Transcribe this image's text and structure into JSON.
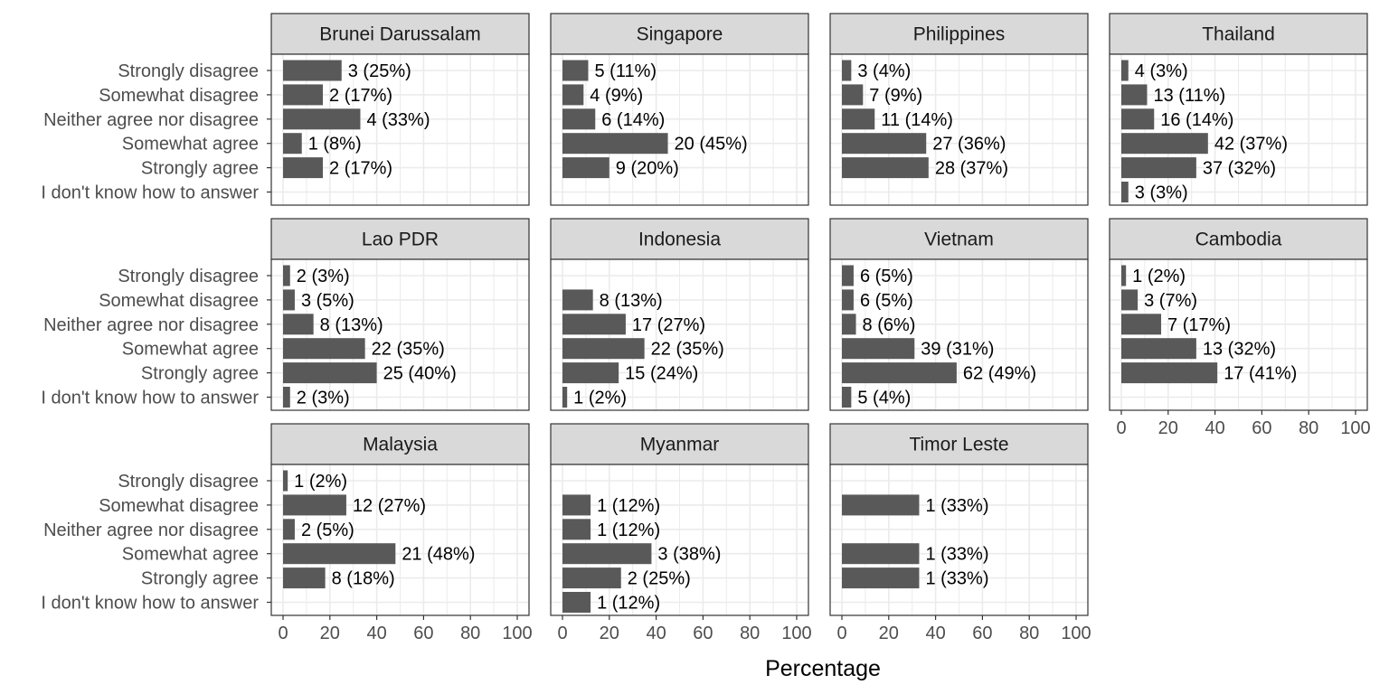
{
  "chart_data": {
    "type": "bar",
    "orientation": "horizontal",
    "xlabel": "Percentage",
    "xlim": [
      0,
      100
    ],
    "xticks": [
      "0",
      "20",
      "40",
      "60",
      "80",
      "100"
    ],
    "grid": true,
    "categories": [
      "Strongly disagree",
      "Somewhat disagree",
      "Neither agree nor disagree",
      "Somewhat agree",
      "Strongly agree",
      "I don't know how to answer"
    ],
    "colors": {
      "bar": "#595959",
      "strip": "#d9d9d9",
      "grid": "#ebebeb",
      "panel_border": "#333333"
    },
    "panels": [
      {
        "title": "Brunei Darussalam",
        "values": [
          25,
          17,
          33,
          8,
          17,
          null
        ],
        "labels": [
          "3 (25%)",
          "2 (17%)",
          "4 (33%)",
          "1 (8%)",
          "2 (17%)",
          ""
        ]
      },
      {
        "title": "Singapore",
        "values": [
          11,
          9,
          14,
          45,
          20,
          null
        ],
        "labels": [
          "5 (11%)",
          "4 (9%)",
          "6 (14%)",
          "20 (45%)",
          "9 (20%)",
          ""
        ]
      },
      {
        "title": "Philippines",
        "values": [
          4,
          9,
          14,
          36,
          37,
          null
        ],
        "labels": [
          "3 (4%)",
          "7 (9%)",
          "11 (14%)",
          "27 (36%)",
          "28 (37%)",
          ""
        ]
      },
      {
        "title": "Thailand",
        "values": [
          3,
          11,
          14,
          37,
          32,
          3
        ],
        "labels": [
          "4 (3%)",
          "13 (11%)",
          "16 (14%)",
          "42 (37%)",
          "37 (32%)",
          "3 (3%)"
        ]
      },
      {
        "title": "Lao PDR",
        "values": [
          3,
          5,
          13,
          35,
          40,
          3
        ],
        "labels": [
          "2 (3%)",
          "3 (5%)",
          "8 (13%)",
          "22 (35%)",
          "25 (40%)",
          "2 (3%)"
        ]
      },
      {
        "title": "Indonesia",
        "values": [
          null,
          13,
          27,
          35,
          24,
          2
        ],
        "labels": [
          "",
          "8 (13%)",
          "17 (27%)",
          "22 (35%)",
          "15 (24%)",
          "1 (2%)"
        ]
      },
      {
        "title": "Vietnam",
        "values": [
          5,
          5,
          6,
          31,
          49,
          4
        ],
        "labels": [
          "6 (5%)",
          "6 (5%)",
          "8 (6%)",
          "39 (31%)",
          "62 (49%)",
          "5 (4%)"
        ]
      },
      {
        "title": "Cambodia",
        "values": [
          2,
          7,
          17,
          32,
          41,
          null
        ],
        "labels": [
          "1 (2%)",
          "3 (7%)",
          "7 (17%)",
          "13 (32%)",
          "17 (41%)",
          ""
        ]
      },
      {
        "title": "Malaysia",
        "values": [
          2,
          27,
          5,
          48,
          18,
          null
        ],
        "labels": [
          "1 (2%)",
          "12 (27%)",
          "2 (5%)",
          "21 (48%)",
          "8 (18%)",
          ""
        ]
      },
      {
        "title": "Myanmar",
        "values": [
          null,
          12,
          12,
          38,
          25,
          12
        ],
        "labels": [
          "",
          "1 (12%)",
          "1 (12%)",
          "3 (38%)",
          "2 (25%)",
          "1 (12%)"
        ]
      },
      {
        "title": "Timor Leste",
        "values": [
          null,
          33,
          null,
          33,
          33,
          null
        ],
        "labels": [
          "",
          "1 (33%)",
          "",
          "1 (33%)",
          "1 (33%)",
          ""
        ]
      }
    ]
  }
}
